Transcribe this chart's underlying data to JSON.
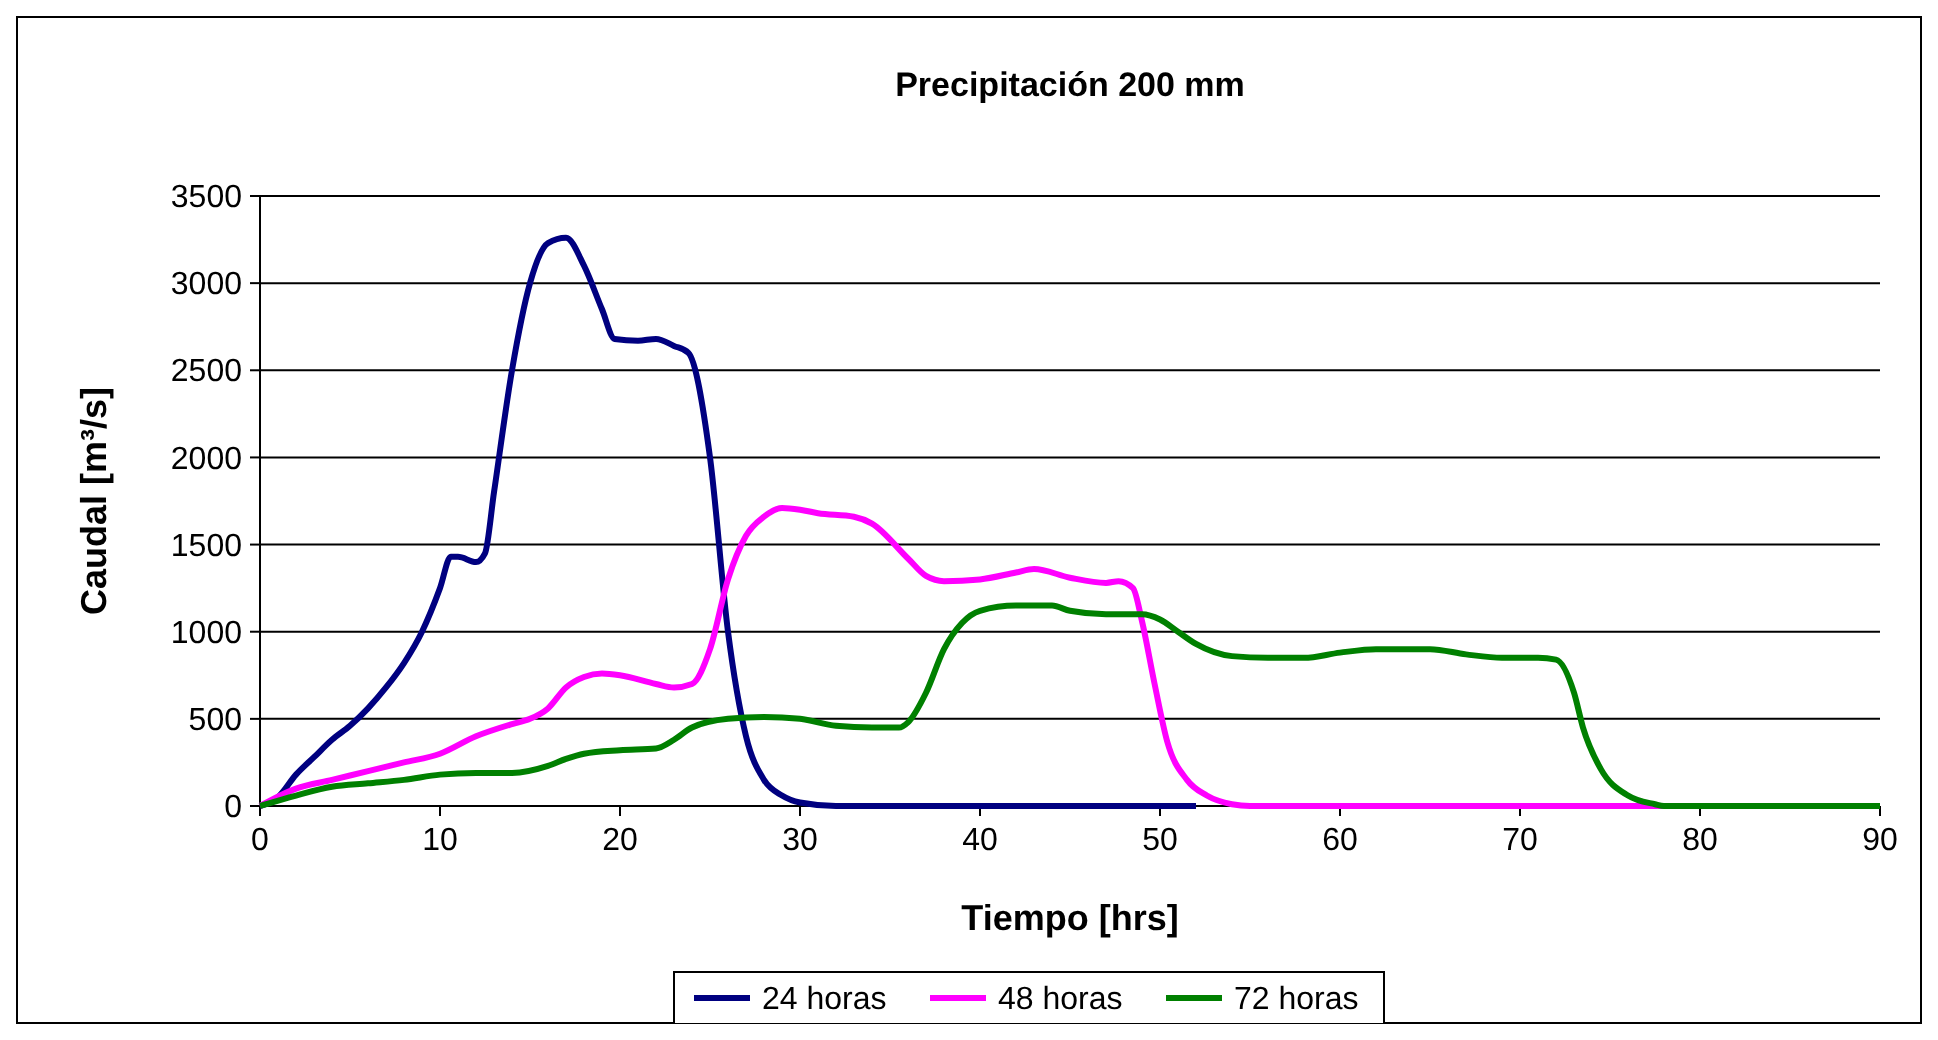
{
  "chart_data": {
    "type": "line",
    "title": "Precipitación 200 mm",
    "xlabel": "Tiempo [hrs]",
    "ylabel": "Caudal [m³/s]",
    "xlim": [
      0,
      90
    ],
    "xticks": [
      0,
      10,
      20,
      30,
      40,
      50,
      60,
      70,
      80,
      90
    ],
    "ylim": [
      0,
      3500
    ],
    "yticks": [
      0,
      500,
      1000,
      1500,
      2000,
      2500,
      3000,
      3500
    ],
    "grid": "y",
    "legend": "bottom",
    "marker": "none",
    "line_style": "solid",
    "series": [
      {
        "name": "24 horas",
        "color": "#000080",
        "x": [
          0,
          1,
          2,
          3,
          4,
          5,
          6,
          7,
          8,
          9,
          10,
          10.6,
          11,
          12,
          12.5,
          13,
          14,
          15,
          16,
          17,
          18,
          19,
          19.7,
          21,
          22,
          23,
          23.8,
          25,
          26,
          27,
          28,
          29,
          30,
          32,
          52
        ],
        "values": [
          0,
          50,
          180,
          280,
          380,
          460,
          560,
          680,
          820,
          1000,
          1250,
          1430,
          1430,
          1400,
          1450,
          1800,
          2500,
          3000,
          3230,
          3260,
          3100,
          2850,
          2680,
          2670,
          2680,
          2640,
          2600,
          2000,
          1000,
          400,
          150,
          60,
          20,
          0,
          0
        ]
      },
      {
        "name": "48 horas",
        "color": "#ff00ff",
        "x": [
          0,
          2,
          4,
          6,
          8,
          10,
          12,
          14,
          15,
          16,
          17,
          18,
          19,
          20,
          22,
          23,
          24,
          25,
          26,
          27,
          28,
          29,
          30,
          31,
          33,
          34,
          36,
          37,
          38,
          40,
          42,
          43,
          45,
          47,
          47.7,
          48.5,
          49,
          49.7,
          50.4,
          51.5,
          52.6,
          54,
          55,
          90
        ],
        "values": [
          0,
          100,
          150,
          200,
          250,
          300,
          400,
          470,
          500,
          560,
          680,
          740,
          760,
          750,
          700,
          680,
          700,
          900,
          1300,
          1550,
          1660,
          1710,
          1700,
          1680,
          1660,
          1620,
          1420,
          1320,
          1290,
          1300,
          1340,
          1360,
          1310,
          1280,
          1290,
          1250,
          1060,
          700,
          370,
          150,
          60,
          10,
          0,
          0
        ]
      },
      {
        "name": "72 horas",
        "color": "#008000",
        "x": [
          0,
          2,
          4,
          6,
          8,
          10,
          12,
          14,
          16,
          17,
          18,
          20,
          22,
          23,
          24,
          26,
          28,
          30,
          32,
          34,
          35.5,
          36,
          37,
          38,
          39,
          40,
          42,
          44,
          45,
          47,
          49,
          50,
          51,
          52,
          54,
          56,
          58,
          60,
          62,
          65,
          67,
          69,
          71,
          72,
          73,
          73.5,
          74.5,
          76,
          77.5,
          78,
          90
        ],
        "values": [
          0,
          60,
          110,
          130,
          150,
          180,
          190,
          190,
          230,
          270,
          300,
          320,
          330,
          380,
          450,
          500,
          510,
          500,
          460,
          450,
          450,
          480,
          650,
          900,
          1050,
          1120,
          1150,
          1150,
          1120,
          1100,
          1100,
          1070,
          1000,
          930,
          860,
          850,
          850,
          880,
          900,
          900,
          870,
          850,
          850,
          840,
          650,
          450,
          210,
          60,
          10,
          0,
          0
        ]
      }
    ]
  }
}
